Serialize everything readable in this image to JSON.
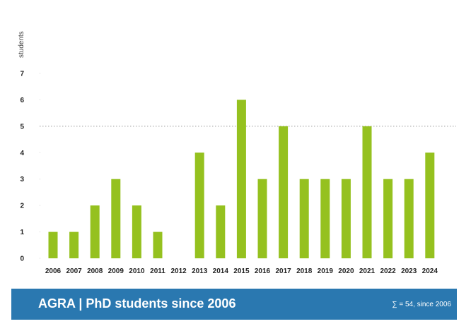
{
  "chart_data": {
    "type": "bar",
    "categories": [
      "2006",
      "2007",
      "2008",
      "2009",
      "2010",
      "2011",
      "2012",
      "2013",
      "2014",
      "2015",
      "2016",
      "2017",
      "2018",
      "2019",
      "2020",
      "2021",
      "2022",
      "2023",
      "2024"
    ],
    "values": [
      1,
      1,
      2,
      3,
      2,
      1,
      0,
      4,
      2,
      6,
      3,
      5,
      3,
      3,
      3,
      5,
      3,
      3,
      4
    ],
    "ylabel": "students",
    "xlabel": "",
    "ylim": [
      0,
      7
    ],
    "yticks": [
      "0",
      "1",
      "2",
      "3",
      "4",
      "5",
      "6",
      "7"
    ],
    "reference_line": 5,
    "grid": false,
    "bar_color": "#95c11f"
  },
  "footer": {
    "title": "AGRA | PhD students since 2006",
    "note": "∑ = 54, since 2006",
    "background": "#2a78b0"
  }
}
